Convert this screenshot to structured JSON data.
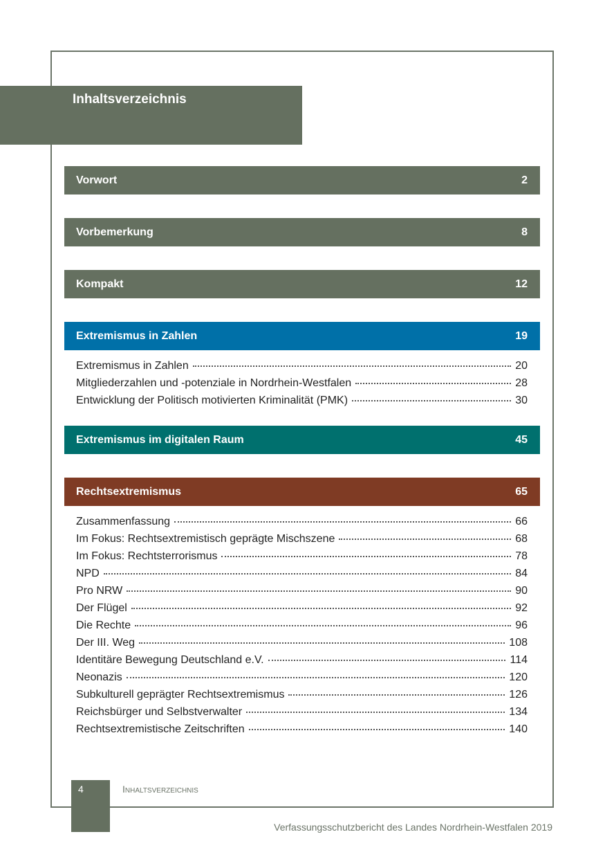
{
  "title": "Inhaltsverzeichnis",
  "sections": [
    {
      "label": "Vorwort",
      "page": "2",
      "color": "#657060"
    },
    {
      "label": "Vorbemerkung",
      "page": "8",
      "color": "#657060"
    },
    {
      "label": "Kompakt",
      "page": "12",
      "color": "#657060"
    },
    {
      "label": "Extremismus in Zahlen",
      "page": "19",
      "color": "#0070a8",
      "entries": [
        {
          "label": "Extremismus in Zahlen",
          "page": "20"
        },
        {
          "label": "Mitgliederzahlen und -potenziale in Nordrhein-Westfalen",
          "page": "28"
        },
        {
          "label": "Entwicklung der Politisch motivierten Kriminalität (PMK)",
          "page": "30"
        }
      ]
    },
    {
      "label": "Extremismus im digitalen Raum",
      "page": "45",
      "color": "#00706e"
    },
    {
      "label": "Rechtsextremismus",
      "page": "65",
      "color": "#7f3b24",
      "entries": [
        {
          "label": "Zusammenfassung",
          "page": "66"
        },
        {
          "label": "Im Fokus: Rechtsextremistisch geprägte Mischszene",
          "page": "68"
        },
        {
          "label": "Im Fokus: Rechtsterrorismus",
          "page": "78"
        },
        {
          "label": "NPD",
          "page": "84"
        },
        {
          "label": "Pro NRW",
          "page": "90"
        },
        {
          "label": "Der Flügel",
          "page": "92"
        },
        {
          "label": "Die Rechte",
          "page": "96"
        },
        {
          "label": "Der III. Weg",
          "page": "108"
        },
        {
          "label": "Identitäre Bewegung Deutschland e.V.",
          "page": "114"
        },
        {
          "label": "Neonazis",
          "page": "120"
        },
        {
          "label": "Subkulturell geprägter Rechtsextremismus",
          "page": "126"
        },
        {
          "label": "Reichsbürger und Selbstverwalter",
          "page": "134"
        },
        {
          "label": "Rechtsextremistische Zeitschriften",
          "page": "140"
        }
      ]
    }
  ],
  "footer": {
    "page_number": "4",
    "running_title": "Inhaltsverzeichnis",
    "publication": "Verfassungsschutzbericht des Landes Nordrhein-Westfalen 2019"
  }
}
